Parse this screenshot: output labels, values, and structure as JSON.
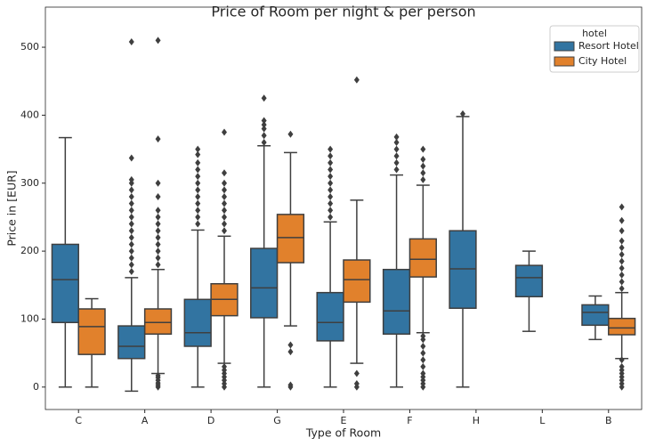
{
  "chart_data": {
    "type": "box",
    "title": "Price of Room per night & per person",
    "x_label": "Type of Room",
    "y_label": "Price in [EUR]",
    "categories": [
      "C",
      "A",
      "D",
      "G",
      "E",
      "F",
      "H",
      "L",
      "B"
    ],
    "ylim": [
      -33,
      559
    ],
    "yticks": [
      0,
      100,
      200,
      300,
      400,
      500
    ],
    "grid": false,
    "legend_title": "hotel",
    "legend_position": "upper right",
    "series": [
      {
        "name": "Resort Hotel",
        "color": "#3274a1",
        "boxes": [
          {
            "low": 0,
            "q1": 95,
            "median": 158,
            "q3": 210,
            "high": 367,
            "outliers": []
          },
          {
            "low": -6,
            "q1": 42,
            "median": 60,
            "q3": 90,
            "high": 161,
            "outliers": [
              170,
              180,
              190,
              200,
              210,
              220,
              230,
              240,
              250,
              260,
              270,
              280,
              290,
              300,
              305,
              337,
              508
            ]
          },
          {
            "low": 0,
            "q1": 60,
            "median": 80,
            "q3": 129,
            "high": 231,
            "outliers": [
              240,
              250,
              260,
              270,
              280,
              290,
              300,
              310,
              320,
              330,
              342,
              350
            ]
          },
          {
            "low": 0,
            "q1": 102,
            "median": 146,
            "q3": 204,
            "high": 355,
            "outliers": [
              360,
              370,
              380,
              386,
              392,
              425
            ]
          },
          {
            "low": 0,
            "q1": 68,
            "median": 95,
            "q3": 139,
            "high": 243,
            "outliers": [
              250,
              260,
              270,
              280,
              290,
              300,
              310,
              320,
              330,
              340,
              350
            ]
          },
          {
            "low": 0,
            "q1": 78,
            "median": 112,
            "q3": 173,
            "high": 312,
            "outliers": [
              320,
              330,
              340,
              350,
              360,
              368
            ]
          },
          {
            "low": 0,
            "q1": 116,
            "median": 174,
            "q3": 230,
            "high": 398,
            "outliers": [
              402
            ]
          },
          {
            "low": 82,
            "q1": 133,
            "median": 161,
            "q3": 179,
            "high": 200,
            "outliers": []
          },
          {
            "low": 70,
            "q1": 91,
            "median": 110,
            "q3": 121,
            "high": 134,
            "outliers": []
          }
        ]
      },
      {
        "name": "City Hotel",
        "color": "#e1812c",
        "boxes": [
          {
            "low": 0,
            "q1": 48,
            "median": 89,
            "q3": 115,
            "high": 130,
            "outliers": []
          },
          {
            "low": 20,
            "q1": 78,
            "median": 95,
            "q3": 115,
            "high": 173,
            "outliers": [
              0,
              3,
              6,
              10,
              14,
              17,
              180,
              190,
              200,
              210,
              220,
              230,
              240,
              250,
              260,
              280,
              300,
              365,
              510
            ]
          },
          {
            "low": 35,
            "q1": 105,
            "median": 129,
            "q3": 152,
            "high": 222,
            "outliers": [
              0,
              5,
              10,
              15,
              20,
              25,
              30,
              230,
              240,
              250,
              260,
              270,
              280,
              290,
              300,
              315,
              375
            ]
          },
          {
            "low": 90,
            "q1": 183,
            "median": 220,
            "q3": 254,
            "high": 345,
            "outliers": [
              0,
              3,
              52,
              62,
              372
            ]
          },
          {
            "low": 35,
            "q1": 125,
            "median": 158,
            "q3": 187,
            "high": 275,
            "outliers": [
              0,
              5,
              20,
              452
            ]
          },
          {
            "low": 80,
            "q1": 162,
            "median": 188,
            "q3": 218,
            "high": 297,
            "outliers": [
              0,
              5,
              10,
              15,
              20,
              30,
              40,
              50,
              60,
              70,
              75,
              305,
              315,
              325,
              335,
              350
            ]
          },
          null,
          null,
          {
            "low": 42,
            "q1": 77,
            "median": 87,
            "q3": 101,
            "high": 139,
            "outliers": [
              0,
              5,
              10,
              15,
              20,
              25,
              30,
              40,
              145,
              155,
              165,
              175,
              185,
              195,
              205,
              215,
              230,
              245,
              265
            ]
          }
        ]
      }
    ]
  }
}
